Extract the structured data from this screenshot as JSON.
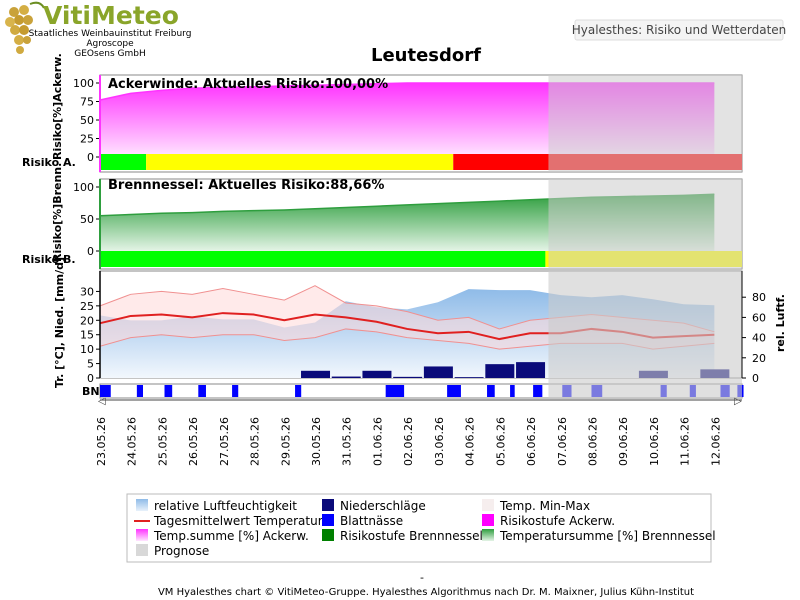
{
  "header": {
    "logo_title": "VitiMeteo",
    "logo_lines": [
      "Staatliches Weinbauinstitut Freiburg",
      "Agroscope",
      "GEOsens GmbH"
    ],
    "top_right_label": "Hyalesthes: Risiko und Wetterdaten",
    "location_title": "Leutesdorf"
  },
  "colors": {
    "magenta": "#ff44ff",
    "green_fill": "#2e9e3e",
    "risk_green": "#00ff00",
    "risk_yellow": "#ffff00",
    "risk_red": "#ff0000",
    "prognose": "#cccccc",
    "humidity": "#9ec3ea",
    "temp_line": "#e02020",
    "temp_band": "#ffd8d8",
    "precip": "#0a0a7a",
    "blatt": "#0000ff"
  },
  "chart_data": [
    {
      "type": "area",
      "panel": "ackerwinde",
      "title": "Ackerwinde:  Aktuelles Risiko:100,00%",
      "ylabel": "Risiko[%]Ackerw.",
      "risk_row_label": "Risiko A.",
      "ylim": [
        0,
        100
      ],
      "yticks": [
        0,
        25,
        50,
        75,
        100
      ],
      "x_days": [
        22,
        23,
        24,
        25,
        26,
        27,
        28,
        29,
        30,
        31,
        32,
        33,
        34,
        35,
        36,
        37,
        38,
        39,
        40,
        41,
        42
      ],
      "values": [
        77,
        86,
        90,
        93,
        94,
        95,
        96,
        97,
        98,
        99,
        100,
        100,
        100,
        100,
        100,
        100,
        100,
        100,
        100,
        100,
        100
      ],
      "risk_segments": [
        {
          "from": 22,
          "to": 23.5,
          "level": "green"
        },
        {
          "from": 23.5,
          "to": 33.5,
          "level": "yellow"
        },
        {
          "from": 33.5,
          "to": 36.6,
          "level": "red"
        },
        {
          "from": 36.6,
          "to": 42.9,
          "level": "red"
        }
      ]
    },
    {
      "type": "area",
      "panel": "brennnessel",
      "title": "Brennnessel:  Aktuelles Risiko:88,66%",
      "ylabel": "Risiko[%]Brenn.",
      "risk_row_label": "Risiko B.",
      "ylim": [
        0,
        100
      ],
      "yticks": [
        0,
        50,
        100
      ],
      "x_days": [
        22,
        23,
        24,
        25,
        26,
        27,
        28,
        29,
        30,
        31,
        32,
        33,
        34,
        35,
        36,
        37,
        38,
        39,
        40,
        41,
        42
      ],
      "values": [
        55,
        57,
        59,
        60,
        62,
        63,
        64,
        66,
        68,
        70,
        72,
        74,
        76,
        78,
        80,
        82,
        84,
        85,
        86,
        87,
        88.66
      ],
      "risk_segments": [
        {
          "from": 22,
          "to": 36.5,
          "level": "green"
        },
        {
          "from": 36.5,
          "to": 42.9,
          "level": "yellow"
        }
      ]
    },
    {
      "type": "line",
      "panel": "weather",
      "ylabel": "Tr. [°C], Nied. [mm/d]",
      "y2label": "rel. Luftf.",
      "blatt_row_label": "BN",
      "ylim": [
        0,
        35
      ],
      "yticks": [
        0,
        5,
        10,
        15,
        20,
        25,
        30
      ],
      "y2lim": [
        0,
        100
      ],
      "y2ticks": [
        0,
        20,
        40,
        60,
        80
      ],
      "x_days": [
        22,
        23,
        24,
        25,
        26,
        27,
        28,
        29,
        30,
        31,
        32,
        33,
        34,
        35,
        36,
        37,
        38,
        39,
        40,
        41,
        42
      ],
      "categories": [
        "23.05.26",
        "24.05.26",
        "25.05.26",
        "26.05.26",
        "27.05.26",
        "28.05.26",
        "29.05.26",
        "30.05.26",
        "31.05.26",
        "01.06.26",
        "02.06.26",
        "03.06.26",
        "04.06.26",
        "05.06.26",
        "06.06.26",
        "07.06.26",
        "08.06.26",
        "09.06.26",
        "10.06.26",
        "11.06.26",
        "12.06.26"
      ],
      "temp_mean": [
        19,
        21.5,
        22,
        21,
        22.5,
        22,
        20,
        22,
        21,
        19.5,
        17,
        15.5,
        16,
        13.5,
        15.5,
        15.5,
        17,
        16,
        14,
        14.5,
        15
      ],
      "temp_max": [
        25,
        29,
        30,
        29,
        31,
        29,
        27,
        32,
        26,
        25,
        23,
        20,
        21,
        17,
        20,
        21,
        22,
        21,
        20,
        19,
        16
      ],
      "temp_min": [
        11,
        14,
        15,
        14,
        15,
        15,
        13,
        14,
        17,
        16,
        14,
        13,
        12,
        10,
        11,
        12,
        12,
        12,
        10,
        11,
        12
      ],
      "humidity": [
        62,
        57,
        57,
        61,
        58,
        58,
        50,
        55,
        76,
        70,
        68,
        75,
        88,
        87,
        87,
        82,
        80,
        82,
        78,
        73,
        72
      ],
      "precip": [
        {
          "day": 29,
          "value": 2.5
        },
        {
          "day": 30,
          "value": 0.5
        },
        {
          "day": 31,
          "value": 2.5
        },
        {
          "day": 32,
          "value": 0.4
        },
        {
          "day": 33,
          "value": 4.0
        },
        {
          "day": 34,
          "value": 0.3
        },
        {
          "day": 35,
          "value": 4.8
        },
        {
          "day": 36,
          "value": 5.5
        },
        {
          "day": 40,
          "value": 2.5
        },
        {
          "day": 42,
          "value": 3.0
        }
      ],
      "blatt_intervals": [
        [
          22.0,
          22.35
        ],
        [
          23.2,
          23.4
        ],
        [
          24.1,
          24.35
        ],
        [
          25.2,
          25.45
        ],
        [
          26.3,
          26.5
        ],
        [
          28.35,
          28.55
        ],
        [
          31.3,
          31.9
        ],
        [
          33.3,
          33.75
        ],
        [
          34.6,
          34.85
        ],
        [
          35.35,
          35.5
        ],
        [
          36.1,
          36.4
        ],
        [
          37.05,
          37.35
        ],
        [
          38.0,
          38.35
        ],
        [
          40.25,
          40.45
        ],
        [
          41.2,
          41.4
        ],
        [
          42.2,
          42.5
        ],
        [
          42.75,
          42.95
        ]
      ],
      "prognose_from": 36.6
    }
  ],
  "legend": [
    {
      "key": "humidity",
      "label": "relative Luftfeuchtigkeit"
    },
    {
      "key": "precip",
      "label": "Niederschläge"
    },
    {
      "key": "tminmax",
      "label": "Temp. Min-Max"
    },
    {
      "key": "tmean",
      "label": "Tagesmittelwert Temperatur"
    },
    {
      "key": "blatt",
      "label": "Blattnässe"
    },
    {
      "key": "risk_a",
      "label": "Risikostufe Ackerw."
    },
    {
      "key": "tsum_a",
      "label": "Temp.summe [%] Ackerw."
    },
    {
      "key": "risk_b",
      "label": "Risikostufe Brennnessel"
    },
    {
      "key": "tsum_b",
      "label": "Temperatursumme [%] Brennnessel"
    },
    {
      "key": "prognose",
      "label": "Prognose"
    }
  ],
  "footer": {
    "dash": "-",
    "credit": "VM Hyalesthes chart © VitiMeteo-Gruppe. Hyalesthes Algorithmus nach Dr. M. Maixner, Julius Kühn-Institut"
  }
}
